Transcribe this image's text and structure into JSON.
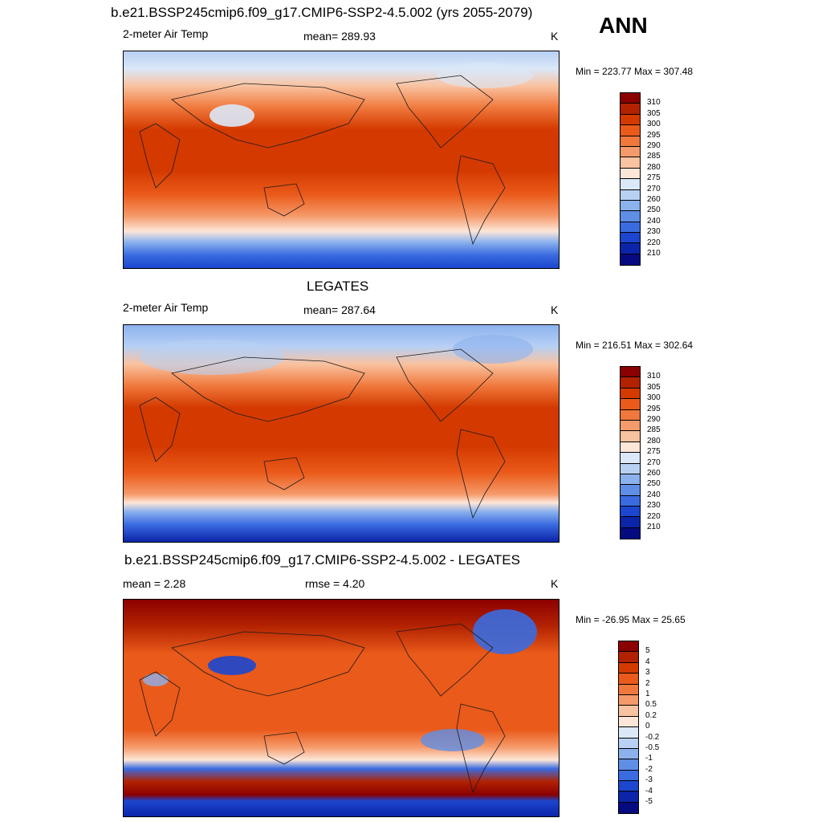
{
  "panel_top": {
    "title": "b.e21.BSSP245cmip6.f09_g17.CMIP6-SSP2-4.5.002 (yrs 2055-2079)",
    "left": "2-meter Air Temp",
    "center": "mean= 289.93",
    "right": "K",
    "minmax": "Min = 223.77 Max = 307.48"
  },
  "season": "ANN",
  "panel_mid": {
    "title": "LEGATES",
    "left": "2-meter Air Temp",
    "center": "mean= 287.64",
    "right": "K",
    "minmax": "Min = 216.51 Max = 302.64"
  },
  "panel_bot": {
    "title": "b.e21.BSSP245cmip6.f09_g17.CMIP6-SSP2-4.5.002 - LEGATES",
    "left": "mean =   2.28",
    "center": "rmse =   4.20",
    "right": "K",
    "minmax": "Min = -26.95 Max =  25.65"
  },
  "temp_colorbar": {
    "labels": [
      "310",
      "305",
      "300",
      "295",
      "290",
      "285",
      "280",
      "275",
      "270",
      "260",
      "250",
      "240",
      "230",
      "220",
      "210"
    ],
    "colors": [
      "#8b0000",
      "#b22200",
      "#d43a00",
      "#ea5a1a",
      "#f0783c",
      "#f59a6a",
      "#f9c2a0",
      "#fde6d8",
      "#dbe8f8",
      "#b8d0f4",
      "#8cb2ee",
      "#5f8ee6",
      "#3a6be0",
      "#1c46d0",
      "#0b24a8",
      "#060a80"
    ]
  },
  "diff_colorbar": {
    "labels": [
      "5",
      "4",
      "3",
      "2",
      "1",
      "0.5",
      "0.2",
      "0",
      "-0.2",
      "-0.5",
      "-1",
      "-2",
      "-3",
      "-4",
      "-5"
    ],
    "colors": [
      "#8b0000",
      "#b22200",
      "#d43a00",
      "#ea5a1a",
      "#f0783c",
      "#f59a6a",
      "#f9c2a0",
      "#fde6d8",
      "#dbe8f8",
      "#b8d0f4",
      "#8cb2ee",
      "#5f8ee6",
      "#3a6be0",
      "#1c46d0",
      "#0b24a8",
      "#060a80"
    ]
  }
}
